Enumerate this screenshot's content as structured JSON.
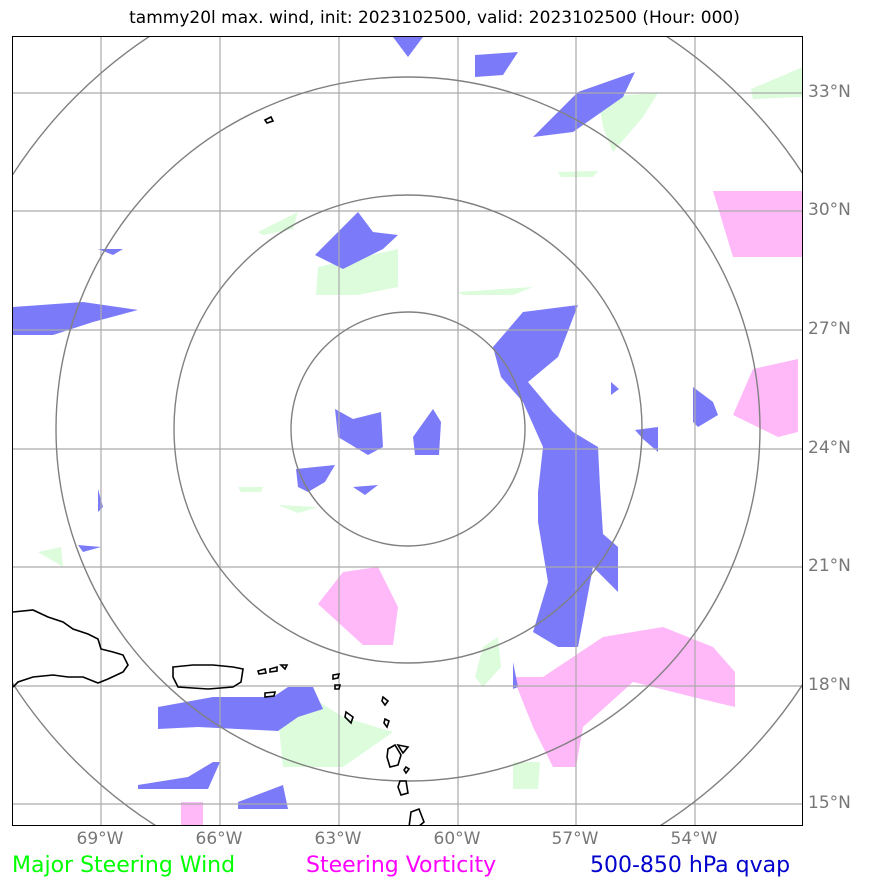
{
  "title": "tammy20l max. wind, init: 2023102500, valid: 2023102500 (Hour: 000)",
  "lat_labels": [
    "33°N",
    "30°N",
    "27°N",
    "24°N",
    "21°N",
    "18°N",
    "15°N"
  ],
  "lon_labels": [
    "69°W",
    "66°W",
    "63°W",
    "60°W",
    "57°W",
    "54°W"
  ],
  "legend": {
    "wind": "Major Steering Wind",
    "vorticity": "Steering Vorticity",
    "qvap": "500-850 hPa qvap"
  },
  "colors": {
    "wind": "#00ff00",
    "vorticity": "#ff00ff",
    "qvap": "#0000cc",
    "qvap_fill": "#7b7bfa",
    "vort_fill": "#ffb8f8",
    "wind_fill": "#dcfcdc",
    "grid": "#aaaaaa",
    "rings": "#808080",
    "labels": "#777777"
  },
  "map_extent": {
    "lon_min": -71.2,
    "lon_max": -51.2,
    "lat_min": 14.5,
    "lat_max": 34.5
  },
  "storm_center": {
    "lon": -61.2,
    "lat": 24.6
  },
  "range_rings_count": 4
}
